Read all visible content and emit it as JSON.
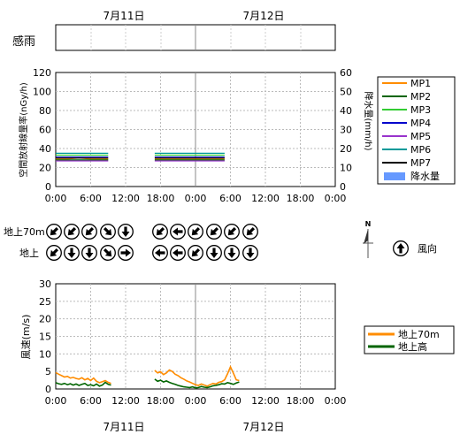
{
  "dates": [
    "7月11日",
    "7月12日"
  ],
  "rain_sense": {
    "label": "感雨"
  },
  "time_ticks": [
    "0:00",
    "6:00",
    "12:00",
    "18:00",
    "0:00",
    "6:00",
    "12:00",
    "18:00",
    "0:00"
  ],
  "radiation": {
    "left_label": "空間放射線量率(nGy/h)",
    "right_label": "降水量(mm/h)",
    "left_ticks": [
      "0",
      "20",
      "40",
      "60",
      "80",
      "100",
      "120"
    ],
    "right_ticks": [
      "0",
      "10",
      "20",
      "30",
      "40",
      "50",
      "60"
    ]
  },
  "radiation_legend": [
    {
      "name": "MP1",
      "color": "#ff8c00",
      "kind": "line"
    },
    {
      "name": "MP2",
      "color": "#006400",
      "kind": "line"
    },
    {
      "name": "MP3",
      "color": "#33cc33",
      "kind": "line"
    },
    {
      "name": "MP4",
      "color": "#0000cc",
      "kind": "line"
    },
    {
      "name": "MP5",
      "color": "#9933cc",
      "kind": "line"
    },
    {
      "name": "MP6",
      "color": "#009999",
      "kind": "line"
    },
    {
      "name": "MP7",
      "color": "#000000",
      "kind": "line"
    },
    {
      "name": "降水量",
      "color": "#6699ff",
      "kind": "box"
    }
  ],
  "wind_dir": {
    "row1_label": "地上70m",
    "row2_label": "地上",
    "north_label": "N",
    "legend_label": "風向",
    "row1_day1": [
      "southwest",
      "southwest",
      "southwest",
      "southeast",
      "south"
    ],
    "row2_day1": [
      "southwest",
      "south",
      "south",
      "southeast",
      "east"
    ],
    "row1_day2": [
      "southwest",
      "west",
      "southwest",
      "southwest",
      "southwest",
      "southwest",
      "west"
    ],
    "row2_day2": [
      "west",
      "west",
      "southwest",
      "south",
      "south",
      "south",
      "southwest"
    ]
  },
  "wind_speed": {
    "ylabel": "風速(m/s)",
    "y_ticks": [
      "0",
      "5",
      "10",
      "15",
      "20",
      "25",
      "30"
    ],
    "legend": [
      {
        "name": "地上70m",
        "color": "#ff8c00"
      },
      {
        "name": "地上高",
        "color": "#006400"
      }
    ]
  },
  "chart_data": [
    {
      "type": "line",
      "ylabel": "空間放射線量率(nGy/h)",
      "y2label": "降水量(mm/h)",
      "ylim": [
        0,
        120
      ],
      "y2lim": [
        0,
        60
      ],
      "x_range_hours": [
        0,
        48
      ],
      "x_ticks": [
        "0:00",
        "6:00",
        "12:00",
        "18:00",
        "0:00",
        "6:00",
        "12:00",
        "18:00",
        "0:00"
      ],
      "series": [
        {
          "name": "MP1",
          "x_hours": [
            0,
            2,
            4,
            6,
            8,
            9,
            17,
            19,
            21,
            23,
            25,
            27,
            29,
            31.5
          ],
          "values": [
            29,
            29,
            30,
            29,
            29,
            29,
            29,
            29,
            29,
            29,
            29,
            29,
            29,
            29
          ]
        },
        {
          "name": "MP2",
          "x_hours": [
            0,
            2,
            4,
            6,
            8,
            9,
            17,
            19,
            21,
            23,
            25,
            27,
            29,
            31.5
          ],
          "values": [
            28,
            28,
            28,
            28,
            28,
            28,
            28,
            28,
            28,
            28,
            28,
            28,
            28,
            28
          ]
        },
        {
          "name": "MP3",
          "x_hours": [
            0,
            2,
            4,
            6,
            8,
            9,
            17,
            19,
            21,
            23,
            25,
            27,
            29,
            31.5
          ],
          "values": [
            33,
            33,
            33,
            33,
            33,
            33,
            33,
            33,
            33,
            33,
            33,
            33,
            33,
            33
          ]
        },
        {
          "name": "MP4",
          "x_hours": [
            0,
            2,
            4,
            6,
            8,
            9,
            17,
            19,
            21,
            23,
            25,
            27,
            29,
            31.5
          ],
          "values": [
            31,
            31,
            31,
            31,
            31,
            31,
            31,
            31,
            31,
            31,
            31,
            31,
            31,
            31
          ]
        },
        {
          "name": "MP5",
          "x_hours": [
            0,
            2,
            4,
            6,
            8,
            9,
            17,
            19,
            21,
            23,
            25,
            27,
            29,
            31.5
          ],
          "values": [
            27,
            27,
            27,
            27,
            27,
            27,
            27,
            27,
            27,
            27,
            27,
            27,
            27,
            27
          ]
        },
        {
          "name": "MP6",
          "x_hours": [
            0,
            2,
            4,
            6,
            8,
            9,
            17,
            19,
            21,
            23,
            25,
            27,
            29,
            31.5
          ],
          "values": [
            35,
            35,
            35,
            35,
            35,
            35,
            35,
            35,
            35,
            35,
            35,
            35,
            35,
            35
          ]
        },
        {
          "name": "MP7",
          "x_hours": [
            0,
            2,
            4,
            6,
            8,
            9,
            17,
            19,
            21,
            23,
            25,
            27,
            29,
            31.5
          ],
          "values": [
            30,
            30,
            30,
            30,
            30,
            30,
            30,
            30,
            30,
            30,
            30,
            30,
            30,
            30
          ]
        },
        {
          "name": "降水量",
          "x_hours": [],
          "values": []
        }
      ]
    },
    {
      "type": "line",
      "ylabel": "風速(m/s)",
      "ylim": [
        0,
        30
      ],
      "x_range_hours": [
        0,
        48
      ],
      "x_ticks": [
        "0:00",
        "6:00",
        "12:00",
        "18:00",
        "0:00",
        "6:00",
        "12:00",
        "18:00",
        "0:00"
      ],
      "series": [
        {
          "name": "地上70m",
          "x_hours": [
            0,
            0.5,
            1,
            1.5,
            2,
            2.5,
            3,
            3.5,
            4,
            4.5,
            5,
            5.5,
            6,
            6.5,
            7,
            7.5,
            8,
            8.5,
            9,
            9.5,
            17,
            17.5,
            18,
            18.5,
            19,
            19.5,
            20,
            20.5,
            21,
            21.5,
            22,
            22.5,
            23,
            23.5,
            24,
            24.5,
            25,
            25.5,
            26,
            26.5,
            27,
            27.5,
            28,
            28.5,
            29,
            29.5,
            30,
            30.5,
            31,
            31.5
          ],
          "values": [
            4.7,
            4.2,
            3.8,
            3.4,
            3.6,
            3.1,
            3.3,
            3.0,
            2.8,
            3.2,
            2.6,
            3.0,
            2.4,
            3.1,
            2.2,
            1.8,
            2.1,
            2.4,
            1.9,
            1.6,
            5.3,
            4.6,
            4.9,
            4.1,
            4.6,
            5.4,
            5.0,
            4.2,
            3.8,
            3.2,
            2.8,
            2.3,
            2.0,
            1.6,
            1.2,
            1.0,
            1.4,
            1.1,
            0.8,
            1.2,
            1.6,
            1.4,
            1.9,
            2.1,
            2.6,
            4.3,
            6.3,
            4.5,
            2.6,
            2.4
          ]
        },
        {
          "name": "地上高",
          "x_hours": [
            0,
            0.5,
            1,
            1.5,
            2,
            2.5,
            3,
            3.5,
            4,
            4.5,
            5,
            5.5,
            6,
            6.5,
            7,
            7.5,
            8,
            8.5,
            9,
            9.5,
            17,
            17.5,
            18,
            18.5,
            19,
            19.5,
            20,
            20.5,
            21,
            21.5,
            22,
            22.5,
            23,
            23.5,
            24,
            24.5,
            25,
            25.5,
            26,
            26.5,
            27,
            27.5,
            28,
            28.5,
            29,
            29.5,
            30,
            30.5,
            31,
            31.5
          ],
          "values": [
            1.8,
            1.5,
            1.3,
            1.6,
            1.2,
            1.5,
            1.1,
            1.4,
            1.0,
            1.3,
            1.6,
            1.0,
            1.2,
            0.9,
            1.4,
            0.8,
            1.1,
            1.9,
            1.3,
            1.1,
            2.8,
            2.2,
            2.5,
            2.0,
            2.3,
            1.9,
            1.6,
            1.3,
            1.0,
            0.8,
            0.6,
            0.5,
            0.4,
            0.6,
            0.3,
            0.4,
            0.7,
            0.5,
            0.4,
            0.6,
            0.9,
            1.0,
            1.2,
            1.5,
            1.4,
            1.8,
            1.6,
            1.3,
            1.7,
            2.0
          ]
        }
      ]
    }
  ]
}
